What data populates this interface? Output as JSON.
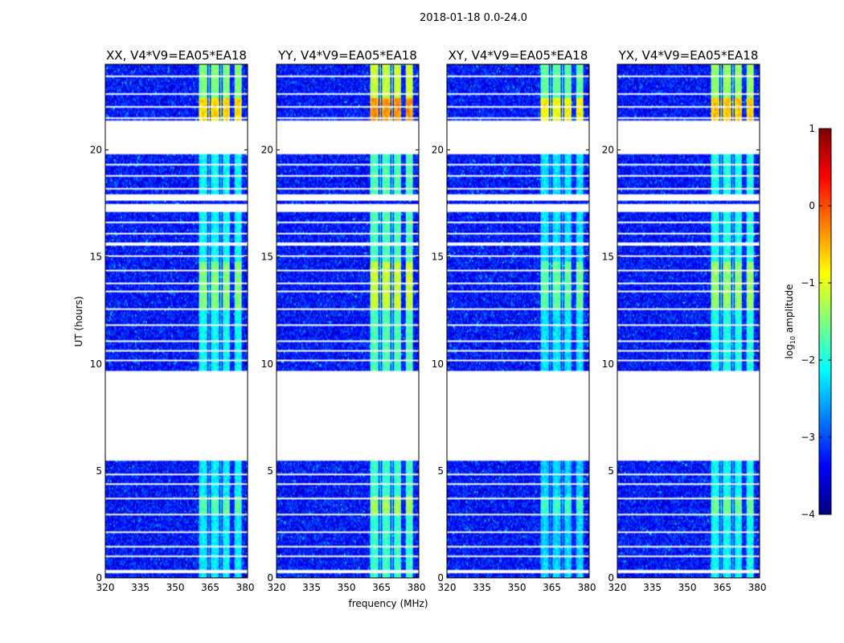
{
  "figure": {
    "suptitle": "2018-01-18 0.0-24.0",
    "xlabel": "frequency (MHz)",
    "ylabel": "UT (hours)"
  },
  "colors": {
    "background": "#ffffff",
    "jet": [
      "#00007f",
      "#0000ff",
      "#007fff",
      "#00ffff",
      "#7fff7f",
      "#ffff00",
      "#ff7f00",
      "#ff0000",
      "#7f0000"
    ]
  },
  "chart_data": {
    "type": "heatmap",
    "panels": [
      {
        "title": "XX, V4*V9=EA05*EA18"
      },
      {
        "title": "YY, V4*V9=EA05*EA18"
      },
      {
        "title": "XY, V4*V9=EA05*EA18"
      },
      {
        "title": "YX, V4*V9=EA05*EA18"
      }
    ],
    "xlim": [
      320,
      381
    ],
    "ylim": [
      0,
      24
    ],
    "xticks": [
      320,
      335,
      350,
      365,
      380
    ],
    "xtick_labels": [
      "320",
      "335",
      "350",
      "365",
      "380"
    ],
    "yticks": [
      0,
      5,
      10,
      15,
      20
    ],
    "ytick_labels": [
      "0",
      "5",
      "10",
      "15",
      "20"
    ],
    "colorbar": {
      "label": "log10 amplitude",
      "label_base": "log",
      "label_sub": "10",
      "label_rest": " amplitude",
      "range": [
        -4,
        1
      ],
      "ticks": [
        -4,
        -3,
        -2,
        -1,
        0,
        1
      ],
      "tick_labels": [
        "−4",
        "−3",
        "−2",
        "−1",
        "0",
        "1"
      ]
    },
    "background_level": -3.3,
    "rfi_band_mhz": [
      360,
      379
    ],
    "rfi_channels_mhz": [
      362,
      367,
      372,
      377
    ],
    "data_gaps_hours": [
      [
        5.5,
        9.7
      ],
      [
        19.8,
        21.4
      ],
      [
        17.1,
        17.5
      ],
      [
        17.6,
        17.9
      ]
    ],
    "rfi_level_by_time": [
      {
        "from": 0.0,
        "to": 3.0,
        "level": -2.1
      },
      {
        "from": 3.0,
        "to": 3.8,
        "level": -1.6
      },
      {
        "from": 3.8,
        "to": 5.5,
        "level": -2.1
      },
      {
        "from": 9.7,
        "to": 12.5,
        "level": -2.0
      },
      {
        "from": 12.5,
        "to": 14.8,
        "level": -1.4
      },
      {
        "from": 14.8,
        "to": 17.1,
        "level": -2.0
      },
      {
        "from": 17.9,
        "to": 19.8,
        "level": -2.0
      },
      {
        "from": 21.4,
        "to": 22.4,
        "level": -0.6
      },
      {
        "from": 22.4,
        "to": 24.0,
        "level": -1.4
      }
    ]
  }
}
